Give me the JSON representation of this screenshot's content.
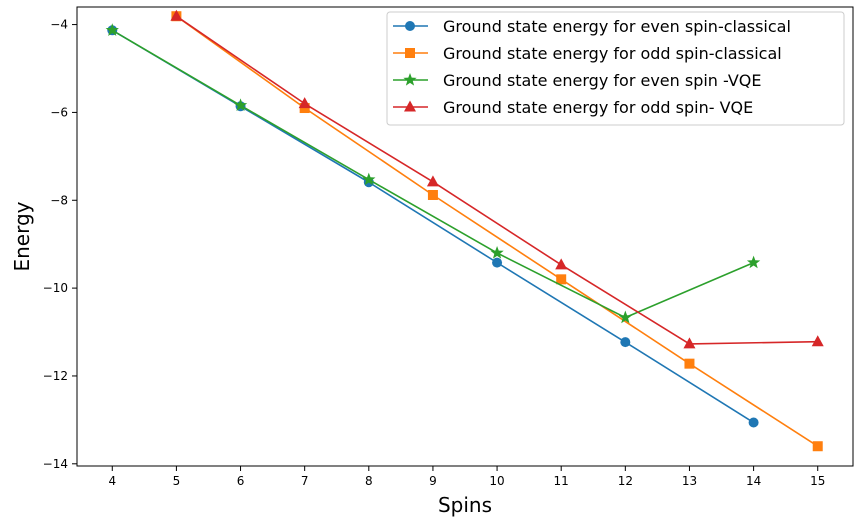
{
  "chart_data": {
    "type": "line",
    "title": "",
    "xlabel": "Spins",
    "ylabel": "Energy",
    "xlim": [
      3.45,
      15.55
    ],
    "ylim": [
      -14.05,
      -3.6
    ],
    "xticks": [
      4,
      5,
      6,
      7,
      8,
      9,
      10,
      11,
      12,
      13,
      14,
      15
    ],
    "xtick_labels": [
      "4",
      "5",
      "6",
      "7",
      "8",
      "9",
      "10",
      "11",
      "12",
      "13",
      "14",
      "15"
    ],
    "yticks": [
      -4,
      -6,
      -8,
      -10,
      -12,
      -14
    ],
    "ytick_labels": [
      "−4",
      "−6",
      "−8",
      "−10",
      "−12",
      "−14"
    ],
    "grid": false,
    "legend_position": "top-right",
    "series": [
      {
        "name": "Ground state energy for even spin-classical",
        "color": "#1f77b4",
        "marker": "circle",
        "x": [
          4,
          6,
          8,
          10,
          12,
          14
        ],
        "y": [
          -4.13,
          -5.86,
          -7.59,
          -9.42,
          -11.23,
          -13.06
        ]
      },
      {
        "name": "Ground state energy for odd spin-classical",
        "color": "#ff7f0e",
        "marker": "square",
        "x": [
          5,
          7,
          9,
          11,
          13,
          15
        ],
        "y": [
          -3.81,
          -5.9,
          -7.88,
          -9.8,
          -11.72,
          -13.6
        ]
      },
      {
        "name": "Ground state energy for even spin -VQE",
        "color": "#2ca02c",
        "marker": "star",
        "x": [
          4,
          6,
          8,
          10,
          12,
          14
        ],
        "y": [
          -4.13,
          -5.84,
          -7.53,
          -9.2,
          -10.67,
          -9.42
        ]
      },
      {
        "name": "Ground state energy for odd spin- VQE",
        "color": "#d62728",
        "marker": "triangle",
        "x": [
          5,
          7,
          9,
          11,
          13,
          15
        ],
        "y": [
          -3.81,
          -5.8,
          -7.58,
          -9.47,
          -11.27,
          -11.22
        ]
      }
    ]
  }
}
